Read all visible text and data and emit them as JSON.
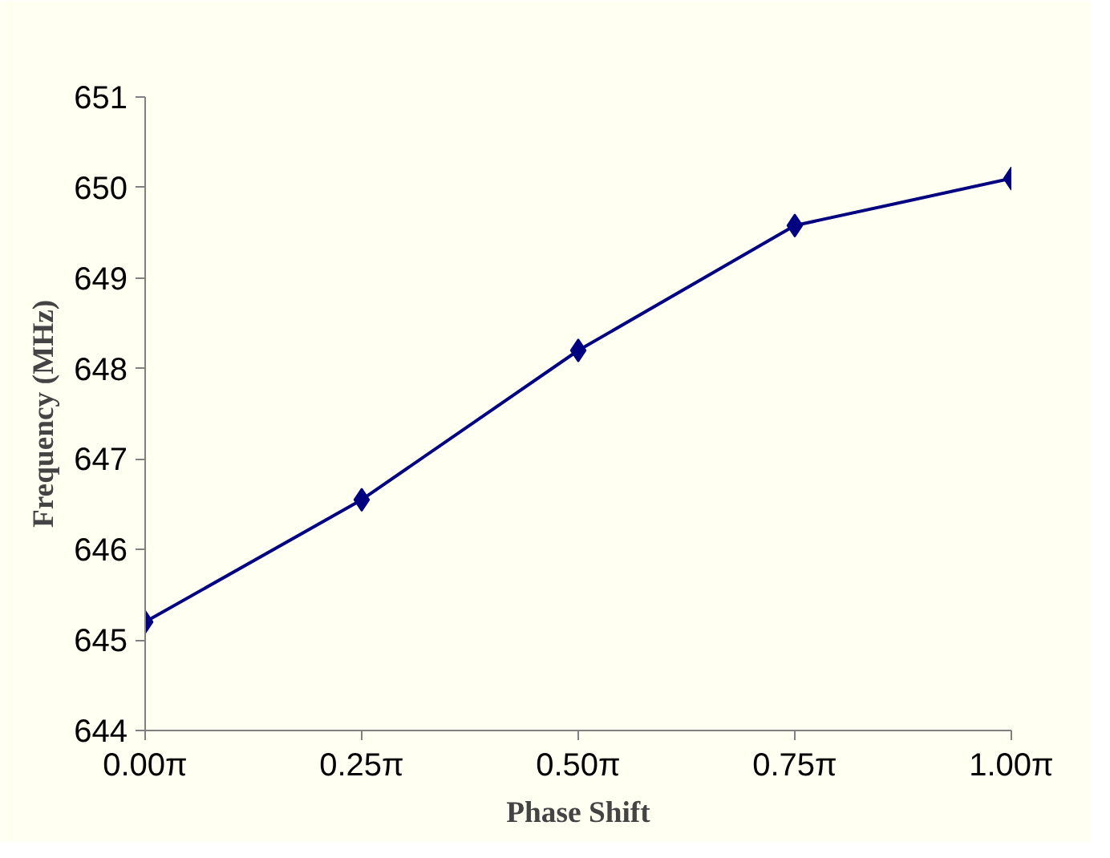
{
  "chart_data": {
    "type": "line",
    "xlabel": "Phase Shift",
    "ylabel": "Frequency (MHz)",
    "categories": [
      "0.00π",
      "0.25π",
      "0.50π",
      "0.75π",
      "1.00π"
    ],
    "series": [
      {
        "color": "#000080",
        "values": [
          645.2,
          646.55,
          648.2,
          649.58,
          650.1
        ]
      }
    ],
    "ylim": [
      644,
      651
    ],
    "yticks": [
      644,
      645,
      646,
      647,
      648,
      649,
      650,
      651
    ],
    "grid": false,
    "marker": "diamond",
    "line_style": "solid"
  }
}
